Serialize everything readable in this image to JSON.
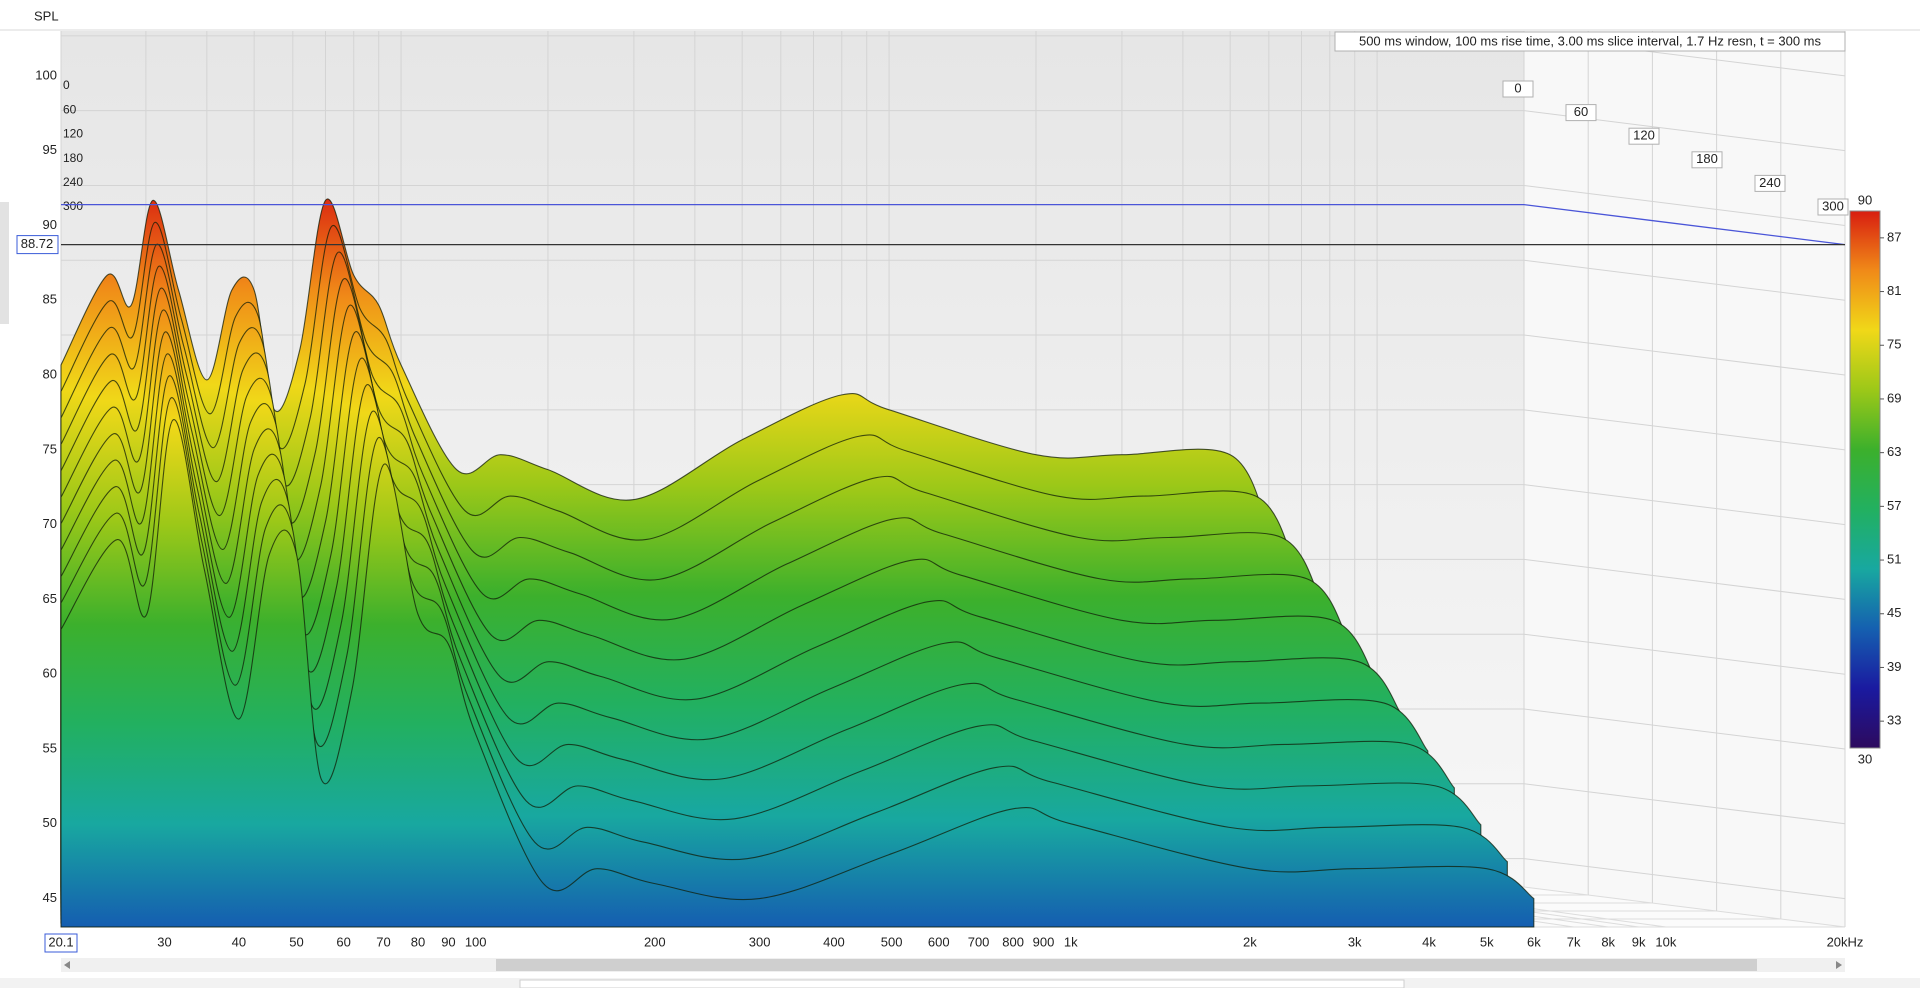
{
  "chart_data": {
    "type": "waterfall",
    "y_label": "SPL",
    "annotation": "500 ms window, 100 ms rise time, 3.00 ms slice interval, 1.7 Hz resn, t = 300 ms",
    "cursor_x": 20.1,
    "cursor_y": 88.72,
    "xlim": [
      20.1,
      20000
    ],
    "xscale": "log",
    "xticks": [
      30,
      40,
      50,
      60,
      70,
      80,
      90,
      100,
      200,
      300,
      400,
      500,
      600,
      700,
      800,
      900,
      {
        "value": 1000,
        "label": "1k"
      },
      {
        "value": 2000,
        "label": "2k"
      },
      {
        "value": 3000,
        "label": "3k"
      },
      {
        "value": 4000,
        "label": "4k"
      },
      {
        "value": 5000,
        "label": "5k"
      },
      {
        "value": 6000,
        "label": "6k"
      },
      {
        "value": 7000,
        "label": "7k"
      },
      {
        "value": 8000,
        "label": "8k"
      },
      {
        "value": 9000,
        "label": "9k"
      },
      {
        "value": 10000,
        "label": "10k"
      },
      {
        "value": 20000,
        "label": "20kHz"
      }
    ],
    "ylim": [
      43.1,
      103
    ],
    "yticks": [
      45,
      50,
      55,
      60,
      65,
      70,
      75,
      80,
      85,
      90,
      95,
      100
    ],
    "tlim": [
      0,
      300
    ],
    "tticks": [
      0,
      60,
      120,
      180,
      240,
      300
    ],
    "zlim": [
      30,
      90
    ],
    "zticks": [
      33,
      39,
      45,
      51,
      57,
      63,
      69,
      75,
      81,
      87
    ],
    "colorscale": [
      "#2d0a5e",
      "#1a1aa0",
      "#1560b0",
      "#18a8a0",
      "#22b060",
      "#3cb02c",
      "#9cc818",
      "#f0d818",
      "#f08a18",
      "#d81e10"
    ],
    "grid": true,
    "x": [
      20.1,
      25,
      28,
      31,
      35,
      40,
      45,
      50,
      55,
      62,
      70,
      80,
      90,
      100,
      130,
      160,
      200,
      300,
      500,
      800,
      1000,
      2000,
      3000,
      5000,
      6000
    ],
    "slices": [
      {
        "time": 0,
        "values": [
          78,
          84,
          82,
          89,
          83,
          77,
          83,
          83,
          75,
          79,
          89,
          84,
          82,
          78,
          71,
          72,
          71,
          69,
          73,
          76,
          75,
          72,
          72,
          72,
          67
        ]
      },
      {
        "time": 30,
        "values": [
          76.5,
          82.5,
          80.2,
          87.8,
          81.4,
          75,
          81.5,
          81.5,
          72.8,
          77,
          87.5,
          82,
          80,
          75.8,
          68.5,
          69.5,
          68.5,
          66.6,
          70.5,
          73.5,
          72.5,
          69.5,
          69.5,
          69.5,
          64.8
        ]
      },
      {
        "time": 60,
        "values": [
          75,
          81,
          78.4,
          86.6,
          79.8,
          73,
          80,
          80,
          70.6,
          75,
          86,
          80,
          78,
          73.6,
          66,
          67,
          66,
          64.2,
          68,
          71,
          70,
          67,
          67,
          67,
          62.6
        ]
      },
      {
        "time": 90,
        "values": [
          73.5,
          79.5,
          76.6,
          85.4,
          78.2,
          71,
          78.5,
          78.5,
          68.4,
          73,
          84.5,
          78,
          76,
          71.4,
          63.5,
          64.5,
          63.5,
          61.8,
          65.5,
          68.5,
          67.5,
          64.5,
          64.5,
          64.5,
          60.4
        ]
      },
      {
        "time": 120,
        "values": [
          72,
          78,
          74.8,
          84.2,
          76.6,
          69,
          77,
          77,
          66.2,
          71,
          83,
          76,
          74,
          69.2,
          61,
          62,
          61,
          59.4,
          63,
          66,
          65,
          62,
          62,
          62,
          58.2
        ]
      },
      {
        "time": 150,
        "values": [
          70.5,
          76.5,
          73,
          83,
          75,
          67,
          75.5,
          75.5,
          64,
          69,
          81.5,
          74,
          72,
          67,
          58.5,
          59.5,
          58.5,
          57,
          60.5,
          63.5,
          62.5,
          59.5,
          59.5,
          59.5,
          56
        ]
      },
      {
        "time": 180,
        "values": [
          69,
          75,
          71.2,
          81.8,
          73.4,
          65,
          74,
          74,
          61.8,
          67,
          80,
          72,
          70,
          64.8,
          56,
          57,
          56,
          54.6,
          58,
          61,
          60,
          57,
          57,
          57,
          53.8
        ]
      },
      {
        "time": 210,
        "values": [
          67.5,
          73.5,
          69.4,
          80.6,
          71.8,
          63,
          72.5,
          72.5,
          59.6,
          65,
          78.5,
          70,
          68,
          62.6,
          53.5,
          54.5,
          53.5,
          52.2,
          55.5,
          58.5,
          57.5,
          54.5,
          54.5,
          54.5,
          51.6
        ]
      },
      {
        "time": 240,
        "values": [
          66,
          72,
          67.6,
          79.4,
          70.2,
          61,
          71,
          71,
          57.4,
          63,
          77,
          68,
          66,
          60.4,
          51,
          52,
          51,
          49.8,
          53,
          56,
          55,
          52,
          52,
          52,
          49.4
        ]
      },
      {
        "time": 270,
        "values": [
          64.5,
          70.5,
          65.8,
          78.2,
          68.6,
          59,
          69.5,
          69.5,
          55.2,
          61,
          75.5,
          66,
          64,
          58.2,
          48.5,
          49.5,
          48.5,
          47.4,
          50.5,
          53.5,
          52.5,
          49.5,
          49.5,
          49.5,
          47.2
        ]
      },
      {
        "time": 300,
        "values": [
          63,
          69,
          64,
          77,
          67,
          57,
          68,
          68,
          53,
          59,
          74,
          64,
          62,
          56,
          46,
          47,
          46,
          45,
          48,
          51,
          50,
          47,
          47,
          47,
          45
        ]
      }
    ]
  }
}
